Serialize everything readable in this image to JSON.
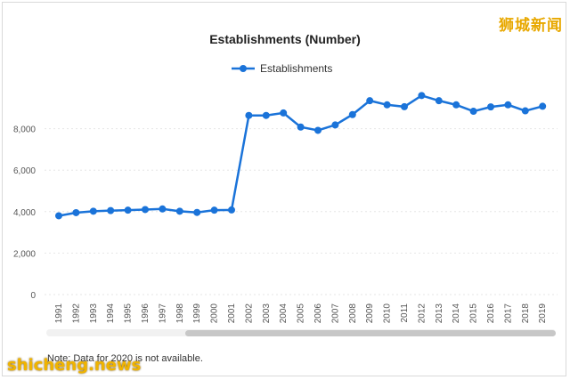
{
  "watermarks": {
    "top": "狮城新闻",
    "bottom": "shicheng.news"
  },
  "note": "Note: Data for 2020 is not available.",
  "colors": {
    "series": "#1a73d9",
    "grid": "#e6e6e6"
  },
  "chart_data": {
    "type": "line",
    "title": "Establishments (Number)",
    "xlabel": "",
    "ylabel": "",
    "ylim": [
      0,
      10000
    ],
    "yticks": [
      0,
      2000,
      4000,
      6000,
      8000
    ],
    "ytick_labels": [
      "0",
      "2,000",
      "4,000",
      "6,000",
      "8,000"
    ],
    "grid": true,
    "legend": "top-center",
    "x": [
      "1991",
      "1992",
      "1993",
      "1994",
      "1995",
      "1996",
      "1997",
      "1998",
      "1999",
      "2000",
      "2001",
      "2002",
      "2003",
      "2004",
      "2005",
      "2006",
      "2007",
      "2008",
      "2009",
      "2010",
      "2011",
      "2012",
      "2013",
      "2014",
      "2015",
      "2016",
      "2017",
      "2018",
      "2019"
    ],
    "series": [
      {
        "name": "Establishments",
        "values": [
          3800,
          3950,
          4020,
          4050,
          4070,
          4100,
          4130,
          4020,
          3960,
          4070,
          4080,
          8640,
          8640,
          8760,
          8080,
          7920,
          8180,
          8680,
          9350,
          9150,
          9060,
          9600,
          9350,
          9150,
          8840,
          9050,
          9150,
          8860,
          9080
        ]
      }
    ]
  }
}
